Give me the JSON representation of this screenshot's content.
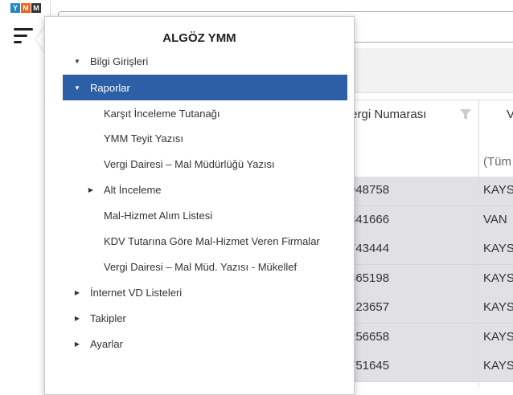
{
  "logo": {
    "letters": [
      "Y",
      "M",
      "M"
    ],
    "colors": [
      "#1e88c8",
      "#e8601c",
      "#333333"
    ]
  },
  "popup": {
    "title": "ALGÖZ YMM",
    "items": [
      {
        "label": "Bilgi Girişleri",
        "level": 0,
        "expander": "down"
      },
      {
        "label": "Raporlar",
        "level": 0,
        "expander": "down",
        "selected": true
      },
      {
        "label": "Karşıt İnceleme Tutanağı",
        "level": 1,
        "expander": ""
      },
      {
        "label": "YMM Teyit Yazısı",
        "level": 1,
        "expander": ""
      },
      {
        "label": "Vergi Dairesi – Mal Müdürlüğü Yazısı",
        "level": 1,
        "expander": ""
      },
      {
        "label": "Alt İnceleme",
        "level": 1,
        "expander": "right"
      },
      {
        "label": "Mal-Hizmet Alım Listesi",
        "level": 1,
        "expander": ""
      },
      {
        "label": "KDV Tutarına Göre Mal-Hizmet Veren Firmalar",
        "level": 1,
        "expander": ""
      },
      {
        "label": "Vergi Dairesi – Mal Müd. Yazısı - Mükellef",
        "level": 1,
        "expander": ""
      },
      {
        "label": "İnternet VD Listeleri",
        "level": 0,
        "expander": "right"
      },
      {
        "label": "Takipler",
        "level": 0,
        "expander": "right"
      },
      {
        "label": "Ayarlar",
        "level": 0,
        "expander": "right"
      }
    ]
  },
  "grid": {
    "columns": [
      "Vergi Numarası",
      "V"
    ],
    "filter": [
      "",
      "(Tüm"
    ],
    "rows": [
      [
        "948758",
        "KAYS"
      ],
      [
        "341666",
        "VAN"
      ],
      [
        "743444",
        "KAYS"
      ],
      [
        "365198",
        "KAYS"
      ],
      [
        "123657",
        "KAYS"
      ],
      [
        "256658",
        "KAYS"
      ],
      [
        "751645",
        "KAYS"
      ]
    ]
  },
  "accent": "#2d5fa6"
}
